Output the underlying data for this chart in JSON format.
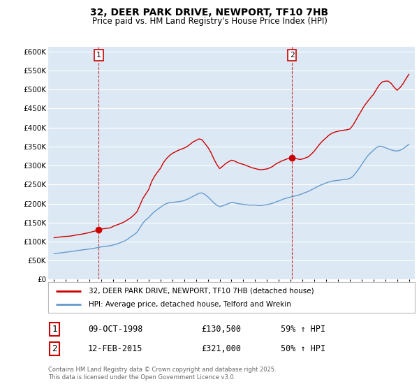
{
  "title": "32, DEER PARK DRIVE, NEWPORT, TF10 7HB",
  "subtitle": "Price paid vs. HM Land Registry's House Price Index (HPI)",
  "legend_line1": "32, DEER PARK DRIVE, NEWPORT, TF10 7HB (detached house)",
  "legend_line2": "HPI: Average price, detached house, Telford and Wrekin",
  "red_line_color": "#cc0000",
  "blue_line_color": "#6699cc",
  "marker1_date": 1998.78,
  "marker1_value": 130500,
  "marker1_label": "1",
  "marker2_date": 2015.12,
  "marker2_value": 321000,
  "marker2_label": "2",
  "vline1_x": 1998.78,
  "vline2_x": 2015.12,
  "ylim": [
    0,
    612000
  ],
  "xlim_start": 1994.5,
  "xlim_end": 2025.5,
  "background_color": "#ffffff",
  "plot_bg_color": "#dce9f5",
  "grid_color": "#ffffff",
  "footer_text": "Contains HM Land Registry data © Crown copyright and database right 2025.\nThis data is licensed under the Open Government Licence v3.0.",
  "table_row1": [
    "1",
    "09-OCT-1998",
    "£130,500",
    "59% ↑ HPI"
  ],
  "table_row2": [
    "2",
    "12-FEB-2015",
    "£321,000",
    "50% ↑ HPI"
  ],
  "red_hpi_data": [
    [
      1995.0,
      110000
    ],
    [
      1995.25,
      111000
    ],
    [
      1995.5,
      112000
    ],
    [
      1995.75,
      113000
    ],
    [
      1996.0,
      113500
    ],
    [
      1996.25,
      114000
    ],
    [
      1996.5,
      115000
    ],
    [
      1996.75,
      116500
    ],
    [
      1997.0,
      118000
    ],
    [
      1997.25,
      119000
    ],
    [
      1997.5,
      120500
    ],
    [
      1997.75,
      122000
    ],
    [
      1998.0,
      124000
    ],
    [
      1998.25,
      126000
    ],
    [
      1998.5,
      128000
    ],
    [
      1998.78,
      130500
    ],
    [
      1999.0,
      133000
    ],
    [
      1999.25,
      134000
    ],
    [
      1999.5,
      135000
    ],
    [
      1999.75,
      136000
    ],
    [
      2000.0,
      140000
    ],
    [
      2000.25,
      143000
    ],
    [
      2000.5,
      146000
    ],
    [
      2000.75,
      149000
    ],
    [
      2001.0,
      153000
    ],
    [
      2001.25,
      158000
    ],
    [
      2001.5,
      163000
    ],
    [
      2001.75,
      170000
    ],
    [
      2002.0,
      178000
    ],
    [
      2002.25,
      195000
    ],
    [
      2002.5,
      213000
    ],
    [
      2002.75,
      225000
    ],
    [
      2003.0,
      237000
    ],
    [
      2003.25,
      258000
    ],
    [
      2003.5,
      272000
    ],
    [
      2003.75,
      283000
    ],
    [
      2004.0,
      293000
    ],
    [
      2004.25,
      308000
    ],
    [
      2004.5,
      318000
    ],
    [
      2004.75,
      326000
    ],
    [
      2005.0,
      332000
    ],
    [
      2005.25,
      336000
    ],
    [
      2005.5,
      340000
    ],
    [
      2005.75,
      343000
    ],
    [
      2006.0,
      346000
    ],
    [
      2006.25,
      350000
    ],
    [
      2006.5,
      356000
    ],
    [
      2006.75,
      362000
    ],
    [
      2007.0,
      366000
    ],
    [
      2007.25,
      370000
    ],
    [
      2007.5,
      368000
    ],
    [
      2007.75,
      358000
    ],
    [
      2008.0,
      348000
    ],
    [
      2008.25,
      335000
    ],
    [
      2008.5,
      318000
    ],
    [
      2008.75,
      303000
    ],
    [
      2009.0,
      292000
    ],
    [
      2009.25,
      298000
    ],
    [
      2009.5,
      305000
    ],
    [
      2009.75,
      310000
    ],
    [
      2010.0,
      314000
    ],
    [
      2010.25,
      312000
    ],
    [
      2010.5,
      308000
    ],
    [
      2010.75,
      305000
    ],
    [
      2011.0,
      303000
    ],
    [
      2011.25,
      300000
    ],
    [
      2011.5,
      297000
    ],
    [
      2011.75,
      294000
    ],
    [
      2012.0,
      292000
    ],
    [
      2012.25,
      290000
    ],
    [
      2012.5,
      289000
    ],
    [
      2012.75,
      290000
    ],
    [
      2013.0,
      291000
    ],
    [
      2013.25,
      294000
    ],
    [
      2013.5,
      298000
    ],
    [
      2013.75,
      304000
    ],
    [
      2014.0,
      308000
    ],
    [
      2014.25,
      312000
    ],
    [
      2014.5,
      315000
    ],
    [
      2014.75,
      318000
    ],
    [
      2015.0,
      319000
    ],
    [
      2015.12,
      321000
    ],
    [
      2015.25,
      320000
    ],
    [
      2015.5,
      318000
    ],
    [
      2015.75,
      316000
    ],
    [
      2016.0,
      317000
    ],
    [
      2016.25,
      320000
    ],
    [
      2016.5,
      323000
    ],
    [
      2016.75,
      330000
    ],
    [
      2017.0,
      338000
    ],
    [
      2017.25,
      348000
    ],
    [
      2017.5,
      358000
    ],
    [
      2017.75,
      366000
    ],
    [
      2018.0,
      373000
    ],
    [
      2018.25,
      380000
    ],
    [
      2018.5,
      385000
    ],
    [
      2018.75,
      388000
    ],
    [
      2019.0,
      390000
    ],
    [
      2019.25,
      392000
    ],
    [
      2019.5,
      393000
    ],
    [
      2019.75,
      394000
    ],
    [
      2020.0,
      396000
    ],
    [
      2020.25,
      405000
    ],
    [
      2020.5,
      418000
    ],
    [
      2020.75,
      432000
    ],
    [
      2021.0,
      445000
    ],
    [
      2021.25,
      458000
    ],
    [
      2021.5,
      468000
    ],
    [
      2021.75,
      478000
    ],
    [
      2022.0,
      487000
    ],
    [
      2022.25,
      500000
    ],
    [
      2022.5,
      512000
    ],
    [
      2022.75,
      520000
    ],
    [
      2023.0,
      522000
    ],
    [
      2023.25,
      522000
    ],
    [
      2023.5,
      516000
    ],
    [
      2023.75,
      506000
    ],
    [
      2024.0,
      498000
    ],
    [
      2024.25,
      505000
    ],
    [
      2024.5,
      515000
    ],
    [
      2024.75,
      528000
    ],
    [
      2025.0,
      540000
    ]
  ],
  "blue_hpi_data": [
    [
      1995.0,
      68000
    ],
    [
      1995.25,
      69000
    ],
    [
      1995.5,
      70000
    ],
    [
      1995.75,
      71000
    ],
    [
      1996.0,
      72000
    ],
    [
      1996.25,
      73000
    ],
    [
      1996.5,
      74000
    ],
    [
      1996.75,
      75000
    ],
    [
      1997.0,
      76500
    ],
    [
      1997.25,
      77500
    ],
    [
      1997.5,
      78500
    ],
    [
      1997.75,
      79500
    ],
    [
      1998.0,
      80500
    ],
    [
      1998.25,
      81500
    ],
    [
      1998.5,
      83000
    ],
    [
      1998.75,
      84500
    ],
    [
      1999.0,
      86000
    ],
    [
      1999.25,
      87000
    ],
    [
      1999.5,
      88000
    ],
    [
      1999.75,
      89000
    ],
    [
      2000.0,
      91000
    ],
    [
      2000.25,
      93000
    ],
    [
      2000.5,
      96000
    ],
    [
      2000.75,
      99000
    ],
    [
      2001.0,
      102000
    ],
    [
      2001.25,
      107000
    ],
    [
      2001.5,
      113000
    ],
    [
      2001.75,
      118000
    ],
    [
      2002.0,
      124000
    ],
    [
      2002.25,
      136000
    ],
    [
      2002.5,
      148000
    ],
    [
      2002.75,
      157000
    ],
    [
      2003.0,
      163000
    ],
    [
      2003.25,
      172000
    ],
    [
      2003.5,
      179000
    ],
    [
      2003.75,
      185000
    ],
    [
      2004.0,
      190000
    ],
    [
      2004.25,
      196000
    ],
    [
      2004.5,
      200000
    ],
    [
      2004.75,
      202000
    ],
    [
      2005.0,
      203000
    ],
    [
      2005.25,
      204000
    ],
    [
      2005.5,
      205000
    ],
    [
      2005.75,
      206000
    ],
    [
      2006.0,
      208000
    ],
    [
      2006.25,
      211000
    ],
    [
      2006.5,
      215000
    ],
    [
      2006.75,
      219000
    ],
    [
      2007.0,
      223000
    ],
    [
      2007.25,
      227000
    ],
    [
      2007.5,
      228000
    ],
    [
      2007.75,
      224000
    ],
    [
      2008.0,
      218000
    ],
    [
      2008.25,
      210000
    ],
    [
      2008.5,
      202000
    ],
    [
      2008.75,
      196000
    ],
    [
      2009.0,
      192000
    ],
    [
      2009.25,
      194000
    ],
    [
      2009.5,
      197000
    ],
    [
      2009.75,
      200000
    ],
    [
      2010.0,
      203000
    ],
    [
      2010.25,
      202000
    ],
    [
      2010.5,
      200000
    ],
    [
      2010.75,
      199000
    ],
    [
      2011.0,
      198000
    ],
    [
      2011.25,
      197000
    ],
    [
      2011.5,
      196000
    ],
    [
      2011.75,
      196000
    ],
    [
      2012.0,
      196000
    ],
    [
      2012.25,
      195000
    ],
    [
      2012.5,
      195000
    ],
    [
      2012.75,
      196000
    ],
    [
      2013.0,
      197000
    ],
    [
      2013.25,
      199000
    ],
    [
      2013.5,
      201000
    ],
    [
      2013.75,
      204000
    ],
    [
      2014.0,
      207000
    ],
    [
      2014.25,
      210000
    ],
    [
      2014.5,
      213000
    ],
    [
      2014.75,
      215000
    ],
    [
      2015.0,
      217000
    ],
    [
      2015.25,
      219000
    ],
    [
      2015.5,
      221000
    ],
    [
      2015.75,
      223000
    ],
    [
      2016.0,
      226000
    ],
    [
      2016.25,
      229000
    ],
    [
      2016.5,
      232000
    ],
    [
      2016.75,
      236000
    ],
    [
      2017.0,
      240000
    ],
    [
      2017.25,
      244000
    ],
    [
      2017.5,
      248000
    ],
    [
      2017.75,
      251000
    ],
    [
      2018.0,
      254000
    ],
    [
      2018.25,
      257000
    ],
    [
      2018.5,
      259000
    ],
    [
      2018.75,
      260000
    ],
    [
      2019.0,
      261000
    ],
    [
      2019.25,
      262000
    ],
    [
      2019.5,
      263000
    ],
    [
      2019.75,
      264000
    ],
    [
      2020.0,
      266000
    ],
    [
      2020.25,
      271000
    ],
    [
      2020.5,
      280000
    ],
    [
      2020.75,
      291000
    ],
    [
      2021.0,
      302000
    ],
    [
      2021.25,
      314000
    ],
    [
      2021.5,
      325000
    ],
    [
      2021.75,
      333000
    ],
    [
      2022.0,
      340000
    ],
    [
      2022.25,
      347000
    ],
    [
      2022.5,
      351000
    ],
    [
      2022.75,
      350000
    ],
    [
      2023.0,
      347000
    ],
    [
      2023.25,
      344000
    ],
    [
      2023.5,
      341000
    ],
    [
      2023.75,
      339000
    ],
    [
      2024.0,
      338000
    ],
    [
      2024.25,
      340000
    ],
    [
      2024.5,
      344000
    ],
    [
      2024.75,
      350000
    ],
    [
      2025.0,
      356000
    ]
  ]
}
